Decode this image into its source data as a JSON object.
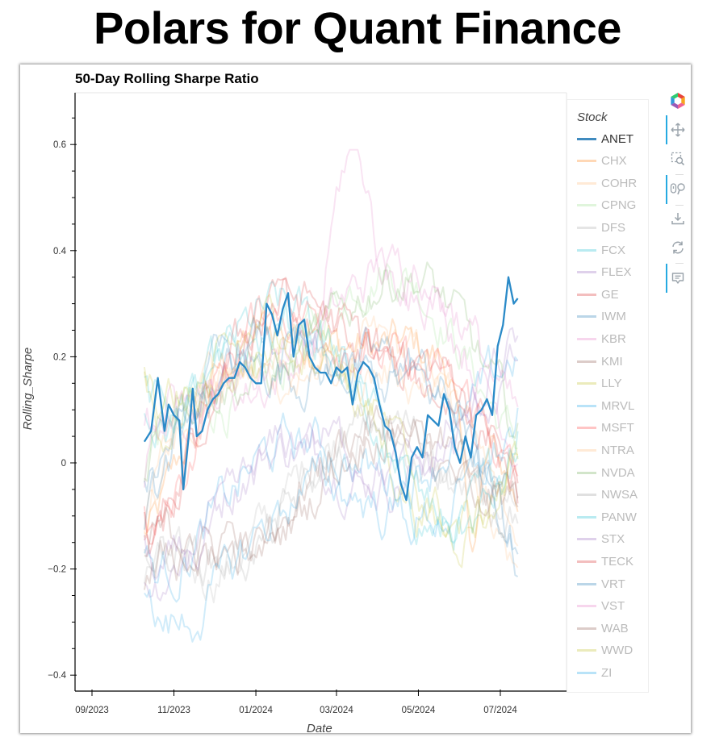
{
  "page": {
    "title": "Polars for Quant Finance"
  },
  "chart": {
    "title": "50-Day Rolling Sharpe Ratio",
    "xlabel": "Date",
    "ylabel": "Rolling_Sharpe"
  },
  "legend": {
    "title": "Stock",
    "items": [
      {
        "label": "ANET",
        "color": "#1f77b4",
        "active": true
      },
      {
        "label": "CHX",
        "color": "#ff7f0e",
        "active": false
      },
      {
        "label": "COHR",
        "color": "#ffbb78",
        "active": false
      },
      {
        "label": "CPNG",
        "color": "#98df8a",
        "active": false
      },
      {
        "label": "DFS",
        "color": "#aaaaaa",
        "active": false
      },
      {
        "label": "FCX",
        "color": "#17becf",
        "active": false
      },
      {
        "label": "FLEX",
        "color": "#9467bd",
        "active": false
      },
      {
        "label": "GE",
        "color": "#d62728",
        "active": false
      },
      {
        "label": "IWM",
        "color": "#1f77b4",
        "active": false
      },
      {
        "label": "KBR",
        "color": "#e377c2",
        "active": false
      },
      {
        "label": "KMI",
        "color": "#8c564b",
        "active": false
      },
      {
        "label": "LLY",
        "color": "#bcbd22",
        "active": false
      },
      {
        "label": "MRVL",
        "color": "#17a2e8",
        "active": false
      },
      {
        "label": "MSFT",
        "color": "#ff4040",
        "active": false
      },
      {
        "label": "NTRA",
        "color": "#ffbb78",
        "active": false
      },
      {
        "label": "NVDA",
        "color": "#6aa84f",
        "active": false
      },
      {
        "label": "NWSA",
        "color": "#999999",
        "active": false
      },
      {
        "label": "PANW",
        "color": "#17becf",
        "active": false
      },
      {
        "label": "STX",
        "color": "#9467bd",
        "active": false
      },
      {
        "label": "TECK",
        "color": "#d62728",
        "active": false
      },
      {
        "label": "VRT",
        "color": "#1f77b4",
        "active": false
      },
      {
        "label": "VST",
        "color": "#e377c2",
        "active": false
      },
      {
        "label": "WAB",
        "color": "#8c564b",
        "active": false
      },
      {
        "label": "WWD",
        "color": "#bcbd22",
        "active": false
      },
      {
        "label": "ZI",
        "color": "#17a2e8",
        "active": false
      }
    ]
  },
  "toolbar": {
    "tools": [
      {
        "name": "logo",
        "glyph": ""
      },
      {
        "name": "pan-tool",
        "glyph": "✥",
        "active": true
      },
      {
        "name": "box-zoom-tool",
        "glyph": "⬚",
        "active": false
      },
      {
        "name": "wheel-zoom-tool",
        "glyph": "⚲",
        "active": true
      },
      {
        "name": "save-tool",
        "glyph": "⤓",
        "active": false
      },
      {
        "name": "reset-tool",
        "glyph": "⟳",
        "active": false
      },
      {
        "name": "hover-tool",
        "glyph": "▭",
        "active": true
      }
    ]
  },
  "chart_data": {
    "type": "line",
    "title": "50-Day Rolling Sharpe Ratio",
    "xlabel": "Date",
    "ylabel": "Rolling_Sharpe",
    "x_ticks": [
      "09/2023",
      "11/2023",
      "01/2024",
      "03/2024",
      "05/2024",
      "07/2024"
    ],
    "y_ticks": [
      -0.4,
      -0.2,
      0,
      0.2,
      0.4,
      0.6
    ],
    "ylim": [
      -0.43,
      0.7
    ],
    "xlim": [
      "2023-08-25",
      "2024-08-20"
    ],
    "grid": false,
    "legend_position": "right",
    "legend_title": "Stock",
    "highlighted_series": "ANET",
    "series": [
      {
        "name": "ANET",
        "x": [
          "2023-10-10",
          "2023-10-15",
          "2023-10-20",
          "2023-10-25",
          "2023-10-28",
          "2023-11-01",
          "2023-11-05",
          "2023-11-08",
          "2023-11-12",
          "2023-11-15",
          "2023-11-18",
          "2023-11-22",
          "2023-11-26",
          "2023-11-30",
          "2023-12-04",
          "2023-12-08",
          "2023-12-12",
          "2023-12-16",
          "2023-12-20",
          "2023-12-24",
          "2023-12-28",
          "2024-01-01",
          "2024-01-05",
          "2024-01-09",
          "2024-01-13",
          "2024-01-17",
          "2024-01-21",
          "2024-01-25",
          "2024-01-29",
          "2024-02-02",
          "2024-02-06",
          "2024-02-10",
          "2024-02-14",
          "2024-02-18",
          "2024-02-22",
          "2024-02-26",
          "2024-03-01",
          "2024-03-05",
          "2024-03-09",
          "2024-03-13",
          "2024-03-17",
          "2024-03-21",
          "2024-03-25",
          "2024-03-29",
          "2024-04-02",
          "2024-04-06",
          "2024-04-10",
          "2024-04-14",
          "2024-04-18",
          "2024-04-22",
          "2024-04-26",
          "2024-04-30",
          "2024-05-04",
          "2024-05-08",
          "2024-05-12",
          "2024-05-16",
          "2024-05-20",
          "2024-05-24",
          "2024-05-28",
          "2024-06-01",
          "2024-06-05",
          "2024-06-09",
          "2024-06-13",
          "2024-06-17",
          "2024-06-21",
          "2024-06-25",
          "2024-06-29",
          "2024-07-03",
          "2024-07-07",
          "2024-07-11",
          "2024-07-14"
        ],
        "values": [
          0.04,
          0.06,
          0.16,
          0.06,
          0.11,
          0.09,
          0.08,
          -0.05,
          0.05,
          0.14,
          0.05,
          0.06,
          0.1,
          0.12,
          0.13,
          0.15,
          0.16,
          0.16,
          0.19,
          0.18,
          0.16,
          0.15,
          0.15,
          0.3,
          0.28,
          0.24,
          0.29,
          0.32,
          0.2,
          0.26,
          0.27,
          0.2,
          0.18,
          0.17,
          0.17,
          0.15,
          0.18,
          0.17,
          0.18,
          0.11,
          0.17,
          0.19,
          0.18,
          0.16,
          0.11,
          0.07,
          0.06,
          0.02,
          -0.04,
          -0.07,
          0.01,
          0.03,
          0.01,
          0.09,
          0.08,
          0.07,
          0.13,
          0.1,
          0.03,
          0.0,
          0.05,
          0.01,
          0.09,
          0.1,
          0.12,
          0.09,
          0.22,
          0.26,
          0.35,
          0.3,
          0.31
        ]
      }
    ],
    "background_series_range": {
      "min": -0.35,
      "max": 0.59,
      "note": "24 other stocks rendered faded; notable: VST peaks ~0.59 around 03/2024, CHX dips to ~-0.35 around 06/2024"
    }
  }
}
